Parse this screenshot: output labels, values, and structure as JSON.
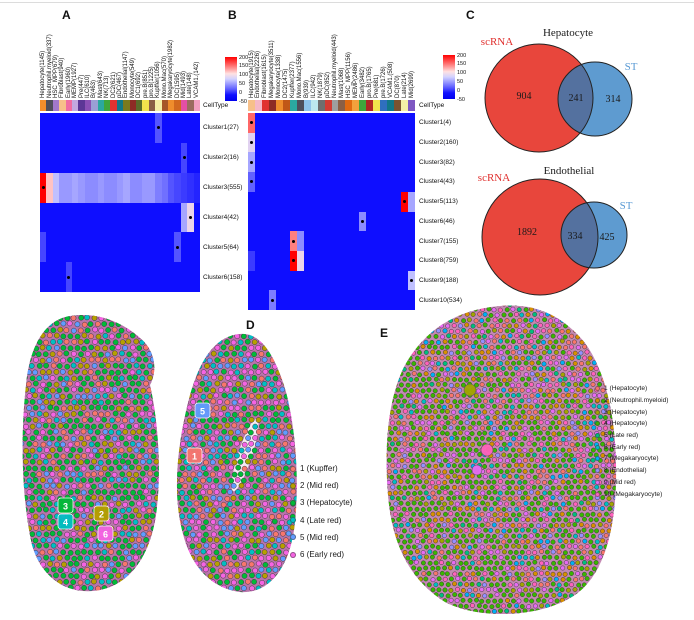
{
  "panels": {
    "a": "A",
    "b": "B",
    "c": "C",
    "d": "D",
    "e": "E"
  },
  "chart_data": [
    {
      "type": "heatmap",
      "panel": "A",
      "celltype_label": "CellType",
      "columns": [
        "Hepatocyte(1145)",
        "Neutrophil.myeloid(337)",
        "HSC_MPP(679)",
        "Fibroblast(940)",
        "Early(1960)",
        "MEMP(1927)",
        "Pre(447)",
        "ILC(610)",
        "B(463)",
        "Mast(643)",
        "NK(713)",
        "DC2(621)",
        "pDC(467)",
        "Endothelial(1147)",
        "Monocyte(549)",
        "DC1(692)",
        "pre.B(851)",
        "pro.B(1225)",
        "Kupffer(1056)",
        "Mono.Mac(570)",
        "Megakaryocyte(1982)",
        "DC(1595)",
        "Mid(1493)",
        "Late(148)",
        "VCAM1.(142)"
      ],
      "column_colors": [
        "#F28E2B",
        "#4E4E5A",
        "#A178C9",
        "#F7C08A",
        "#F06CA2",
        "#C3A8E0",
        "#5C3696",
        "#8A4FB5",
        "#9AA0D5",
        "#2BA8A0",
        "#3FA63C",
        "#E03231",
        "#117788",
        "#7A7A1E",
        "#8E2B25",
        "#5A6B2A",
        "#F2E34C",
        "#8A5F45",
        "#F5EFA6",
        "#A65628",
        "#EF8D2C",
        "#D2691E",
        "#E44FA4",
        "#9A6B5E",
        "#F2A0C0"
      ],
      "rows": [
        "Cluster1(27)",
        "Cluster2(16)",
        "Cluster3(555)",
        "Cluster4(42)",
        "Cluster5(64)",
        "Cluster6(158)"
      ],
      "values": [
        [
          0,
          0,
          0,
          0,
          0,
          0,
          0,
          0,
          0,
          0,
          0,
          0,
          0,
          0,
          0,
          0,
          0,
          0,
          30,
          0,
          0,
          0,
          0,
          0,
          0
        ],
        [
          0,
          0,
          0,
          0,
          0,
          0,
          0,
          0,
          0,
          0,
          0,
          0,
          0,
          0,
          0,
          0,
          0,
          0,
          0,
          0,
          0,
          0,
          25,
          0,
          0
        ],
        [
          200,
          110,
          70,
          55,
          55,
          60,
          55,
          50,
          50,
          55,
          50,
          50,
          55,
          60,
          50,
          50,
          55,
          55,
          45,
          40,
          30,
          25,
          20,
          15,
          10
        ],
        [
          0,
          0,
          0,
          0,
          0,
          0,
          0,
          0,
          0,
          0,
          0,
          0,
          0,
          0,
          0,
          0,
          0,
          0,
          0,
          0,
          0,
          0,
          60,
          90,
          0
        ],
        [
          25,
          0,
          0,
          0,
          0,
          0,
          0,
          0,
          0,
          0,
          0,
          0,
          0,
          0,
          0,
          0,
          0,
          0,
          0,
          0,
          0,
          30,
          0,
          0,
          0
        ],
        [
          0,
          0,
          0,
          0,
          25,
          0,
          0,
          0,
          0,
          0,
          0,
          0,
          0,
          0,
          0,
          0,
          0,
          0,
          0,
          0,
          0,
          0,
          0,
          0,
          0
        ]
      ],
      "significant_cells": [
        [
          0,
          18
        ],
        [
          1,
          22
        ],
        [
          2,
          0
        ],
        [
          3,
          23
        ],
        [
          4,
          21
        ],
        [
          5,
          4
        ]
      ],
      "colorbar_ticks": [
        "200",
        "150",
        "100",
        "50",
        "0",
        "-50"
      ],
      "value_range": [
        -50,
        200
      ]
    },
    {
      "type": "heatmap",
      "panel": "B",
      "celltype_label": "CellType",
      "columns": [
        "Hepatocyte(1915)",
        "Endothelial(2226)",
        "Fibroblast(1615)",
        "Megakaryocyte(3511)",
        "Monocyte(1338)",
        "DC2(1475)",
        "Kupffer(2377)",
        "Mono.Mac(1556)",
        "B(939)",
        "ILC(942)",
        "NK(1879)",
        "pDC(852)",
        "Neutrophil.myeloid(443)",
        "Mast(1068)",
        "HSC_MPP(1156)",
        "MEMP(2486)",
        "Early(3482)",
        "pro.B(1765)",
        "Pre(681)",
        "pre.B(1726)",
        "VCAM1.(508)",
        "DC(870)",
        "Late(214)",
        "Mid(2699)"
      ],
      "column_colors": [
        "#F7C08A",
        "#F5B8C8",
        "#E03231",
        "#8E2B25",
        "#EF8D2C",
        "#C05717",
        "#2BA8A0",
        "#4E4E5A",
        "#8FC3EA",
        "#BDE8EE",
        "#6E6E6E",
        "#D23B33",
        "#9E9E9E",
        "#8A5F45",
        "#E06A10",
        "#F2A13C",
        "#3FA63C",
        "#B02525",
        "#F2E34C",
        "#2F6FBF",
        "#117788",
        "#7A5230",
        "#F5EFA6",
        "#7E57C2"
      ],
      "rows": [
        "Cluster1(4)",
        "Cluster2(160)",
        "Cluster3(82)",
        "Cluster4(43)",
        "Cluster5(113)",
        "Cluster6(46)",
        "Cluster7(155)",
        "Cluster8(759)",
        "Cluster9(188)",
        "Cluster10(534)"
      ],
      "values": [
        [
          150,
          0,
          0,
          0,
          0,
          0,
          0,
          0,
          0,
          0,
          0,
          0,
          0,
          0,
          0,
          0,
          0,
          0,
          0,
          0,
          0,
          0,
          0,
          0
        ],
        [
          85,
          0,
          0,
          0,
          0,
          0,
          0,
          0,
          0,
          0,
          0,
          0,
          0,
          0,
          0,
          0,
          0,
          0,
          0,
          0,
          0,
          0,
          0,
          0
        ],
        [
          60,
          0,
          0,
          0,
          0,
          0,
          0,
          0,
          0,
          0,
          0,
          0,
          0,
          0,
          0,
          0,
          0,
          0,
          0,
          0,
          0,
          0,
          0,
          0
        ],
        [
          35,
          0,
          0,
          0,
          0,
          0,
          0,
          0,
          0,
          0,
          0,
          0,
          0,
          0,
          0,
          0,
          0,
          0,
          0,
          0,
          0,
          0,
          0,
          0
        ],
        [
          0,
          0,
          0,
          0,
          0,
          0,
          0,
          0,
          0,
          0,
          0,
          0,
          0,
          0,
          0,
          0,
          0,
          0,
          0,
          0,
          0,
          0,
          200,
          60
        ],
        [
          0,
          0,
          0,
          0,
          0,
          0,
          0,
          0,
          0,
          0,
          0,
          0,
          0,
          0,
          0,
          0,
          50,
          0,
          0,
          0,
          0,
          0,
          0,
          0
        ],
        [
          0,
          0,
          0,
          0,
          0,
          0,
          140,
          50,
          0,
          0,
          0,
          0,
          0,
          0,
          0,
          0,
          0,
          0,
          0,
          0,
          0,
          0,
          0,
          0
        ],
        [
          20,
          0,
          0,
          0,
          0,
          0,
          200,
          90,
          0,
          0,
          0,
          0,
          0,
          0,
          0,
          0,
          0,
          0,
          0,
          0,
          0,
          0,
          0,
          0
        ],
        [
          0,
          0,
          0,
          0,
          0,
          0,
          0,
          0,
          0,
          0,
          0,
          0,
          0,
          0,
          0,
          0,
          0,
          0,
          0,
          0,
          0,
          0,
          0,
          70
        ],
        [
          0,
          0,
          0,
          45,
          0,
          0,
          0,
          0,
          0,
          0,
          0,
          0,
          0,
          0,
          0,
          0,
          0,
          0,
          0,
          0,
          0,
          0,
          0,
          0
        ]
      ],
      "significant_cells": [
        [
          0,
          0
        ],
        [
          1,
          0
        ],
        [
          2,
          0
        ],
        [
          3,
          0
        ],
        [
          4,
          22
        ],
        [
          5,
          16
        ],
        [
          6,
          6
        ],
        [
          7,
          6
        ],
        [
          8,
          23
        ],
        [
          9,
          3
        ]
      ],
      "colorbar_ticks": [
        "200",
        "150",
        "100",
        "50",
        "0",
        "-50"
      ],
      "value_range": [
        -50,
        200
      ]
    },
    {
      "type": "venn",
      "panel": "C",
      "title": "Hepatocyte",
      "sets": [
        {
          "label": "scRNA",
          "size": "904",
          "fill": "#E8463C",
          "label_color": "#E0302E"
        },
        {
          "label": "ST",
          "size": "314",
          "fill": "#5E9BD0",
          "label_color": "#5B9BD5"
        }
      ],
      "overlap": "241",
      "overlap_fill": "#54719F"
    },
    {
      "type": "venn",
      "panel": "C",
      "title": "Endothelial",
      "sets": [
        {
          "label": "scRNA",
          "size": "1892",
          "fill": "#E8463C",
          "label_color": "#E0302E"
        },
        {
          "label": "ST",
          "size": "425",
          "fill": "#5E9BD0",
          "label_color": "#5B9BD5"
        }
      ],
      "overlap": "334",
      "overlap_fill": "#54719F"
    },
    {
      "type": "spatial",
      "panel": "D",
      "tissue_color": "#AD5C9C",
      "legend": [
        {
          "label": "1 (Kupffer)",
          "color": "#F8766D"
        },
        {
          "label": "2 (Mid red)",
          "color": "#B79F00"
        },
        {
          "label": "3 (Hepatocyte)",
          "color": "#00BA38"
        },
        {
          "label": "4 (Late red)",
          "color": "#00BFC4"
        },
        {
          "label": "5 (Mid red)",
          "color": "#619CFF"
        },
        {
          "label": "6 (Early red)",
          "color": "#F564E3"
        }
      ],
      "markers": [
        {
          "label": "3",
          "color": "#00BA38"
        },
        {
          "label": "4",
          "color": "#00BFC4"
        },
        {
          "label": "2",
          "color": "#B79F00"
        },
        {
          "label": "6",
          "color": "#F564E3"
        },
        {
          "label": "5",
          "color": "#619CFF"
        },
        {
          "label": "1",
          "color": "#F8766D"
        }
      ]
    },
    {
      "type": "spatial",
      "panel": "E",
      "tissue_color": "#BA74A4",
      "legend": [
        {
          "label": "1 (Hepatocyte)",
          "color": "#F8766D"
        },
        {
          "label": "2 (Neutrophil.myeloid)",
          "color": "#D89000"
        },
        {
          "label": "3 (Hepatocyte)",
          "color": "#A3A500"
        },
        {
          "label": "4 (Hepatocyte)",
          "color": "#39B600"
        },
        {
          "label": "5 (Late red)",
          "color": "#00BF7D"
        },
        {
          "label": "6 (Early red)",
          "color": "#00BFC4"
        },
        {
          "label": "7 (Megakaryocyte)",
          "color": "#00B0F6"
        },
        {
          "label": "8 (Endothelial)",
          "color": "#9590FF"
        },
        {
          "label": "9 (Mid red)",
          "color": "#E76BF3"
        },
        {
          "label": "10 (Megakaryocyte)",
          "color": "#FF62BC"
        }
      ],
      "highlight_spots": [
        "#A3A500",
        "#FF62BC",
        "#E76BF3"
      ]
    }
  ]
}
